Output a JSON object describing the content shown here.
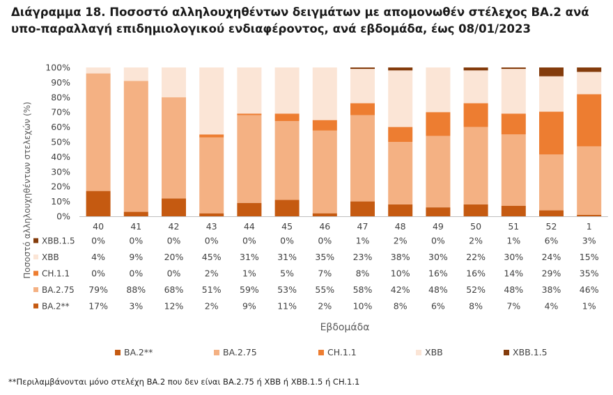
{
  "title": "Διάγραμμα 18. Ποσοστό αλληλουχηθέντων δειγμάτων με απομονωθέν στέλεχος BA.2 ανά υπο-παραλλαγή επιδημιολογικού ενδιαφέροντος, ανά εβδομάδα, έως 08/01/2023",
  "footnote": "**Περιλαμβάνονται μόνο στελέχη BA.2 που δεν είναι BA.2.75 ή XBB ή XBB.1.5 ή CH.1.1",
  "chart_data": {
    "type": "bar",
    "stacked": "percent",
    "categories": [
      "40",
      "41",
      "42",
      "43",
      "44",
      "45",
      "46",
      "47",
      "48",
      "49",
      "50",
      "51",
      "52",
      "1"
    ],
    "xlabel": "Εβδομάδα",
    "ylabel": "Ποσοστό αλληλουχηθέντων στελεχών (%)",
    "ylim": [
      0,
      100
    ],
    "yticks": [
      "0%",
      "10%",
      "20%",
      "30%",
      "40%",
      "50%",
      "60%",
      "70%",
      "80%",
      "90%",
      "100%"
    ],
    "grid": false,
    "legend": "bottom",
    "series": [
      {
        "name": "BA.2**",
        "color": "#C55A11",
        "values": [
          17,
          3,
          12,
          2,
          9,
          11,
          2,
          10,
          8,
          6,
          8,
          7,
          4,
          1
        ],
        "labels": [
          "17%",
          "3%",
          "12%",
          "2%",
          "9%",
          "11%",
          "2%",
          "10%",
          "8%",
          "6%",
          "8%",
          "7%",
          "4%",
          "1%"
        ]
      },
      {
        "name": "BA.2.75",
        "color": "#F4B183",
        "values": [
          79,
          88,
          68,
          51,
          59,
          53,
          55,
          58,
          42,
          48,
          52,
          48,
          38,
          46
        ],
        "labels": [
          "79%",
          "88%",
          "68%",
          "51%",
          "59%",
          "53%",
          "55%",
          "58%",
          "42%",
          "48%",
          "52%",
          "48%",
          "38%",
          "46%"
        ]
      },
      {
        "name": "CH.1.1",
        "color": "#ED7D31",
        "values": [
          0,
          0,
          0,
          2,
          1,
          5,
          7,
          8,
          10,
          16,
          16,
          14,
          29,
          35
        ],
        "labels": [
          "0%",
          "0%",
          "0%",
          "2%",
          "1%",
          "5%",
          "7%",
          "8%",
          "10%",
          "16%",
          "16%",
          "14%",
          "29%",
          "35%"
        ]
      },
      {
        "name": "XBB",
        "color": "#FBE5D6",
        "values": [
          4,
          9,
          20,
          45,
          31,
          31,
          35,
          23,
          38,
          30,
          22,
          30,
          24,
          15
        ],
        "labels": [
          "4%",
          "9%",
          "20%",
          "45%",
          "31%",
          "31%",
          "35%",
          "23%",
          "38%",
          "30%",
          "22%",
          "30%",
          "24%",
          "15%"
        ]
      },
      {
        "name": "XBB.1.5",
        "color": "#843C0C",
        "values": [
          0,
          0,
          0,
          0,
          0,
          0,
          0,
          1,
          2,
          0,
          2,
          1,
          6,
          3
        ],
        "labels": [
          "0%",
          "0%",
          "0%",
          "0%",
          "0%",
          "0%",
          "0%",
          "1%",
          "2%",
          "0%",
          "2%",
          "1%",
          "6%",
          "3%"
        ]
      }
    ]
  }
}
